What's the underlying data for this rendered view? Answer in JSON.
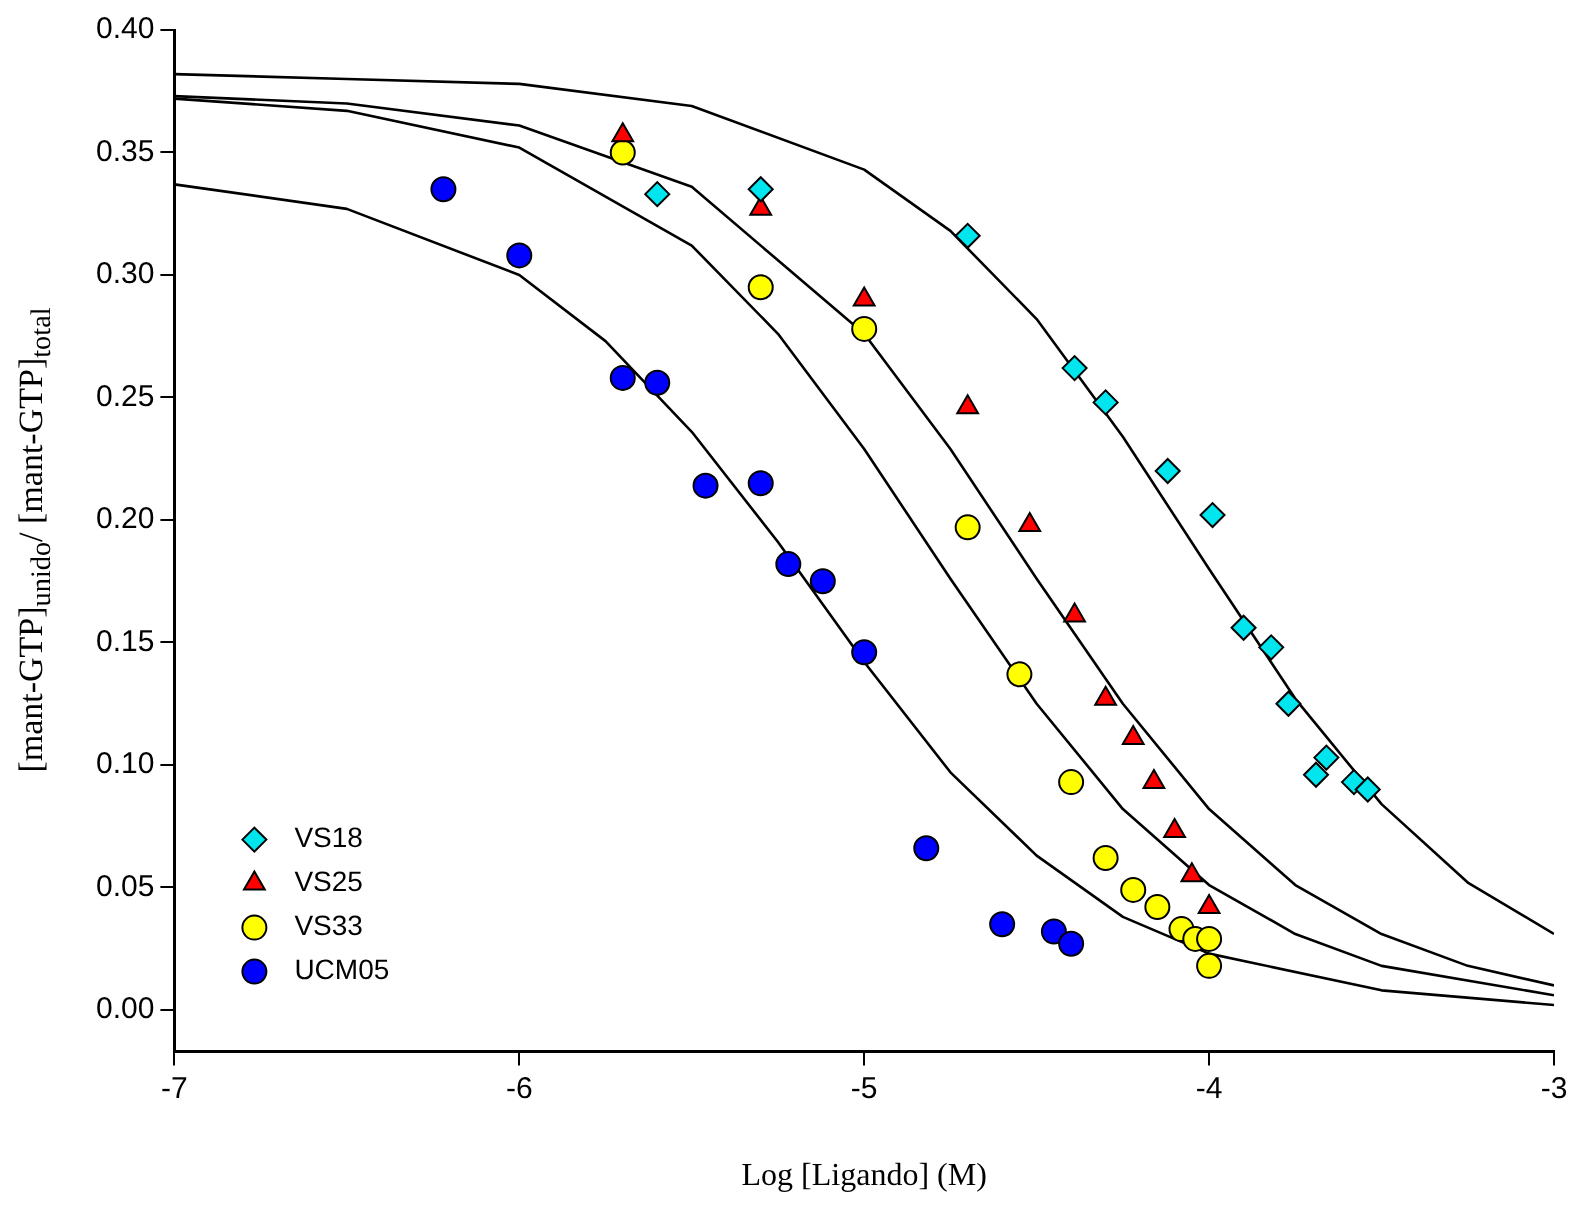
{
  "chart_data": {
    "type": "scatter",
    "xlabel": "Log [Ligando] (M)",
    "ylabel": "[mant-GTP]$_{unido}$/ [mant-GTP]$_{total}$",
    "xlim": [
      -7,
      -3
    ],
    "xticks": [
      -7,
      -6,
      -5,
      -4,
      -3
    ],
    "ylim": [
      -0.017,
      0.4
    ],
    "yticks": [
      {
        "value": 0,
        "label": "0.00"
      },
      {
        "value": 0.05,
        "label": "0.05"
      },
      {
        "value": 0.1,
        "label": "0.10"
      },
      {
        "value": 0.15,
        "label": "0.15"
      },
      {
        "value": 0.2,
        "label": "0.20"
      },
      {
        "value": 0.25,
        "label": "0.25"
      },
      {
        "value": 0.3,
        "label": "0.30"
      },
      {
        "value": 0.35,
        "label": "0.35"
      },
      {
        "value": 0.4,
        "label": "0.40"
      }
    ],
    "grid": false,
    "legend": "bottom left",
    "series": [
      {
        "name": "VS18",
        "type": "scatter",
        "marker": "diamond",
        "color": "#00e5ee",
        "x": [
          -5.6,
          -5.3,
          -4.7,
          -4.39,
          -4.3,
          -4.12,
          -3.99,
          -3.9,
          -3.82,
          -3.77,
          -3.66,
          -3.69,
          -3.58,
          -3.54
        ],
        "values": [
          0.333,
          0.335,
          0.316,
          0.262,
          0.248,
          0.22,
          0.202,
          0.156,
          0.148,
          0.125,
          0.103,
          0.096,
          0.093,
          0.09
        ]
      },
      {
        "name": "VS25",
        "type": "scatter",
        "marker": "triangle",
        "color": "#ff0000",
        "x": [
          -5.7,
          -5.3,
          -5.0,
          -4.7,
          -4.52,
          -4.39,
          -4.3,
          -4.22,
          -4.16,
          -4.1,
          -4.05,
          -4.0
        ],
        "values": [
          0.357,
          0.327,
          0.29,
          0.246,
          0.198,
          0.161,
          0.127,
          0.111,
          0.093,
          0.073,
          0.055,
          0.042
        ]
      },
      {
        "name": "VS33",
        "type": "scatter",
        "marker": "circle",
        "color": "#ffff00",
        "x": [
          -5.7,
          -5.3,
          -5.0,
          -4.7,
          -4.55,
          -4.4,
          -4.3,
          -4.22,
          -4.15,
          -4.08,
          -4.04,
          -4.0,
          -4.0
        ],
        "values": [
          0.35,
          0.295,
          0.278,
          0.197,
          0.137,
          0.093,
          0.062,
          0.049,
          0.042,
          0.033,
          0.029,
          0.029,
          0.018
        ]
      },
      {
        "name": "UCM05",
        "type": "scatter",
        "marker": "circle",
        "color": "#0000ff",
        "x": [
          -6.22,
          -6.0,
          -5.7,
          -5.6,
          -5.46,
          -5.3,
          -5.22,
          -5.12,
          -5.0,
          -4.82,
          -4.6,
          -4.45,
          -4.4
        ],
        "values": [
          0.335,
          0.308,
          0.258,
          0.256,
          0.214,
          0.215,
          0.182,
          0.175,
          0.146,
          0.066,
          0.035,
          0.032,
          0.027
        ]
      },
      {
        "type": "line",
        "marker": "none",
        "color": "#000000",
        "x": [
          -7,
          -6.5,
          -6,
          -5.5,
          -5,
          -4.75,
          -4.5,
          -4.25,
          -4,
          -3.75,
          -3.5,
          -3.25,
          -3
        ],
        "values": [
          0.382,
          0.38,
          0.378,
          0.369,
          0.343,
          0.318,
          0.282,
          0.234,
          0.18,
          0.127,
          0.084,
          0.052,
          0.031
        ]
      },
      {
        "type": "line",
        "marker": "none",
        "color": "#000000",
        "x": [
          -7,
          -6.5,
          -6,
          -5.5,
          -5,
          -4.75,
          -4.5,
          -4.25,
          -4,
          -3.75,
          -3.5,
          -3.25,
          -3
        ],
        "values": [
          0.373,
          0.37,
          0.361,
          0.336,
          0.276,
          0.229,
          0.176,
          0.125,
          0.082,
          0.051,
          0.031,
          0.018,
          0.01
        ]
      },
      {
        "type": "line",
        "marker": "none",
        "color": "#000000",
        "x": [
          -7,
          -6.5,
          -6,
          -5.5,
          -5.25,
          -5,
          -4.75,
          -4.5,
          -4.25,
          -4,
          -3.75,
          -3.5,
          -3
        ],
        "values": [
          0.372,
          0.367,
          0.352,
          0.312,
          0.276,
          0.229,
          0.176,
          0.125,
          0.082,
          0.051,
          0.031,
          0.018,
          0.006
        ]
      },
      {
        "type": "line",
        "marker": "none",
        "color": "#000000",
        "x": [
          -7,
          -6.5,
          -6,
          -5.75,
          -5.5,
          -5.25,
          -5,
          -4.75,
          -4.5,
          -4.25,
          -4,
          -3.5,
          -3
        ],
        "values": [
          0.337,
          0.327,
          0.3,
          0.273,
          0.236,
          0.191,
          0.142,
          0.097,
          0.063,
          0.038,
          0.023,
          0.008,
          0.002
        ]
      }
    ]
  }
}
